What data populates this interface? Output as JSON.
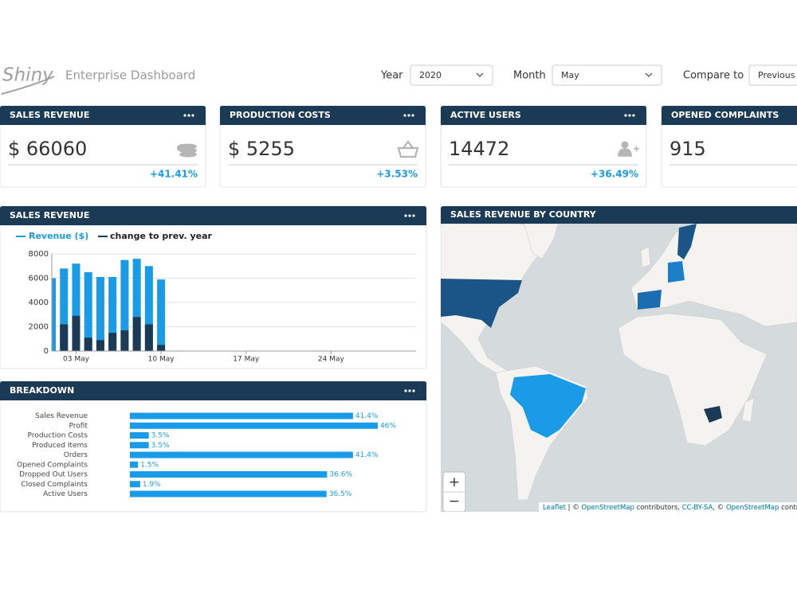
{
  "header": {
    "logo": "Shiny",
    "title": "Enterprise Dashboard",
    "filters": [
      {
        "label": "Year",
        "value": "2020"
      },
      {
        "label": "Month",
        "value": "May"
      },
      {
        "label": "Compare to",
        "value": "Previous"
      }
    ]
  },
  "kpis": [
    {
      "title": "SALES REVENUE",
      "value": "$ 66060",
      "change": "+41.41%"
    },
    {
      "title": "PRODUCTION COSTS",
      "value": "$ 5255",
      "change": "+3.53%"
    },
    {
      "title": "ACTIVE USERS",
      "value": "14472",
      "change": "+36.49%"
    },
    {
      "title": "OPENED COMPLAINTS",
      "value": "915"
    }
  ],
  "chart_data": [
    {
      "type": "bar",
      "title": "SALES REVENUE",
      "x": [
        1,
        2,
        3,
        4,
        5,
        6,
        7,
        8,
        9,
        10
      ],
      "xlim": [
        1,
        31
      ],
      "xticks": [
        {
          "value": 3,
          "label": "03 May"
        },
        {
          "value": 10,
          "label": "10 May"
        },
        {
          "value": 17,
          "label": "17 May"
        },
        {
          "value": 24,
          "label": "24 May"
        }
      ],
      "ylim": [
        0,
        8000
      ],
      "yticks": [
        0,
        2000,
        4000,
        6000,
        8000
      ],
      "grid": true,
      "series": [
        {
          "name": "Revenue ($)",
          "color": "#1a9be8",
          "values": [
            6000,
            6800,
            7200,
            6500,
            6100,
            6100,
            7500,
            7600,
            7000,
            5900
          ]
        },
        {
          "name": "change to prev. year",
          "color": "#1b3a55",
          "values": [
            0,
            2200,
            2900,
            1100,
            900,
            1500,
            1700,
            2800,
            2200,
            500
          ]
        }
      ]
    },
    {
      "type": "hbar",
      "title": "BREAKDOWN",
      "categories": [
        "Sales Revenue",
        "Profit",
        "Production Costs",
        "Produced Items",
        "Orders",
        "Opened Complaints",
        "Dropped Out Users",
        "Closed Complaints",
        "Active Users"
      ],
      "values": [
        41.4,
        46,
        3.5,
        3.5,
        41.4,
        1.5,
        36.6,
        1.9,
        36.5
      ],
      "value_labels": [
        "41.4%",
        "46%",
        "3.5%",
        "3.5%",
        "41.4%",
        "1.5%",
        "36.6%",
        "1.9%",
        "36.5%"
      ],
      "xlim": [
        0,
        100
      ],
      "color": "#1a9be8"
    }
  ],
  "map": {
    "title": "SALES REVENUE BY COUNTRY",
    "zoom_in": "+",
    "zoom_out": "−",
    "attribution": [
      "Leaflet",
      " | © ",
      "OpenStreetMap",
      " contributors, ",
      "CC-BY-SA",
      ", © ",
      "OpenStreetMap",
      " contributors"
    ]
  }
}
